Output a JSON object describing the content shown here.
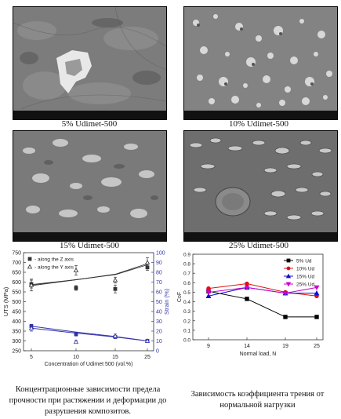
{
  "images": [
    {
      "caption": "5% Udimet-500"
    },
    {
      "caption": "10% Udimet-500"
    },
    {
      "caption": "15% Udimet-500"
    },
    {
      "caption": "25% Udimet-500"
    }
  ],
  "chart_data": [
    {
      "type": "line",
      "categories": [
        5,
        10,
        15,
        25
      ],
      "xlabel": "Concentration of Udimet 500 (vol.%)",
      "ylabel": "UTS (MPa)",
      "y2label": "Strain (%)",
      "ylim": [
        250,
        750
      ],
      "y2lim": [
        0,
        100
      ],
      "yticks": [
        250,
        300,
        350,
        400,
        450,
        500,
        550,
        600,
        650,
        700,
        750
      ],
      "y2ticks": [
        0,
        10,
        20,
        30,
        40,
        50,
        60,
        70,
        80,
        90,
        100
      ],
      "legend_position": "top-left",
      "legend": [
        "- along the Z axis",
        "- along the Y axis"
      ],
      "series": [
        {
          "name": "- along the Z axis",
          "marker": "square",
          "axis": "left",
          "values": [
            590,
            570,
            565,
            675
          ],
          "errors": [
            20,
            12,
            20,
            15
          ],
          "fit": [
            587,
            612,
            638,
            688
          ]
        },
        {
          "name": "- along the Y axis",
          "marker": "triangle",
          "axis": "left",
          "values": [
            585,
            660,
            610,
            700
          ],
          "errors": [
            30,
            25,
            15,
            25
          ],
          "fit": [
            582,
            612,
            640,
            694
          ]
        },
        {
          "name": "- along the Z axis",
          "marker": "square",
          "axis": "right",
          "values": [
            25,
            17,
            14,
            10
          ],
          "errors": [
            2,
            2,
            1,
            0.5
          ],
          "fit": [
            25,
            19,
            14.5,
            10
          ]
        },
        {
          "name": "- along the Y axis",
          "marker": "triangle",
          "axis": "right",
          "values": [
            23,
            9,
            15,
            10
          ],
          "errors": [
            3,
            1.5,
            2,
            0.5
          ],
          "fit": [
            23,
            18,
            14,
            10
          ]
        }
      ],
      "colors": {
        "uts": "#333333",
        "strain": "#3333aa"
      }
    },
    {
      "type": "line",
      "categories": [
        9,
        14,
        19,
        25
      ],
      "xlabel": "Normal load, N",
      "ylabel": "CoF",
      "ylim": [
        0.0,
        0.9
      ],
      "yticks": [
        0.0,
        0.1,
        0.2,
        0.3,
        0.4,
        0.5,
        0.6,
        0.7,
        0.8,
        0.9
      ],
      "legend_position": "top-right",
      "series": [
        {
          "name": "5% Ud",
          "color": "#000000",
          "marker": "square",
          "values": [
            0.51,
            0.43,
            0.24,
            0.24
          ]
        },
        {
          "name": "10% Ud",
          "color": "#dd1111",
          "marker": "circle",
          "values": [
            0.54,
            0.59,
            0.5,
            0.46
          ]
        },
        {
          "name": "15% Ud",
          "color": "#1111cc",
          "marker": "triangle-up",
          "values": [
            0.46,
            0.55,
            0.49,
            0.49
          ]
        },
        {
          "name": "25% Ud",
          "color": "#cc00cc",
          "marker": "triangle-down",
          "values": [
            0.5,
            0.55,
            0.49,
            0.55
          ]
        }
      ]
    }
  ],
  "captions": {
    "left": [
      "Концентрационные зависимости предела",
      "прочности при растяжении и деформации до",
      "разрушения композитов."
    ],
    "right": [
      "Зависимость коэффициента трения от",
      "нормальной нагрузки"
    ]
  }
}
